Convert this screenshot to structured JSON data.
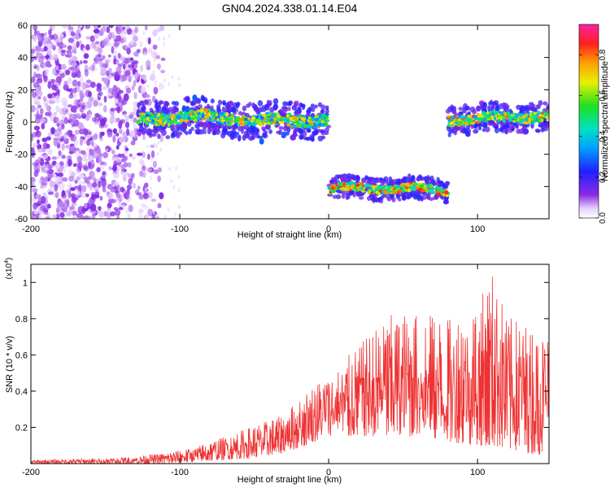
{
  "figure": {
    "title": "GN04.2024.338.01.14.E04"
  },
  "chart_data": [
    {
      "type": "heatmap",
      "title": "GN04.2024.338.01.14.E04",
      "xlabel": "Height of straight line (km)",
      "ylabel": "Frequency (Hz)",
      "xlim": [
        -200,
        148
      ],
      "ylim": [
        -60,
        60
      ],
      "x_ticks": [
        -200,
        -100,
        0,
        100
      ],
      "y_ticks": [
        -60,
        -40,
        -20,
        0,
        20,
        40,
        60
      ],
      "grid": false,
      "colorbar": {
        "label": "Normalized spectral amplitude",
        "range": [
          0,
          0.95
        ],
        "ticks": [
          0.0,
          0.2,
          0.4,
          0.6,
          0.8
        ],
        "colormap": "rainbow (white-purple-blue-cyan-green-yellow-orange-red-magenta)"
      },
      "traces": [
        {
          "x_range": [
            -200,
            -125
          ],
          "freq_range": [
            -60,
            60
          ],
          "typical_amplitude": 0.05,
          "note": "broadband noise"
        },
        {
          "x_range": [
            -128,
            0
          ],
          "center_freq": 2,
          "freq_halfwidth": 6,
          "typical_amplitude": 0.4
        },
        {
          "x_range": [
            0,
            80
          ],
          "center_freq": -42,
          "freq_halfwidth": 4,
          "typical_amplitude": 0.6
        },
        {
          "x_range": [
            80,
            148
          ],
          "center_freq": 3,
          "freq_halfwidth": 5,
          "typical_amplitude": 0.5
        }
      ]
    },
    {
      "type": "line",
      "xlabel": "Height of straight line (km)",
      "ylabel": "SNR (10 * v/v)",
      "y_multiplier": "(x10^4)",
      "xlim": [
        -200,
        148
      ],
      "ylim": [
        0,
        1.1
      ],
      "x_ticks": [
        -200,
        -100,
        0,
        100
      ],
      "y_ticks": [
        0.2,
        0.4,
        0.6,
        0.8,
        1.0
      ],
      "grid": false,
      "series": [
        {
          "color": "#ee3333",
          "envelope": {
            "x": [
              -200,
              -180,
              -150,
              -130,
              -110,
              -90,
              -70,
              -50,
              -30,
              -15,
              0,
              20,
              40,
              60,
              80,
              100,
              110,
              120,
              140,
              148
            ],
            "low": [
              0.0,
              0.0,
              0.0,
              0.0,
              0.0,
              0.01,
              0.02,
              0.03,
              0.06,
              0.1,
              0.15,
              0.15,
              0.15,
              0.15,
              0.12,
              0.1,
              0.1,
              0.08,
              0.05,
              0.05
            ],
            "high": [
              0.02,
              0.025,
              0.03,
              0.04,
              0.06,
              0.09,
              0.15,
              0.21,
              0.27,
              0.4,
              0.5,
              0.65,
              0.82,
              0.85,
              0.8,
              0.88,
              1.06,
              0.82,
              0.75,
              0.8
            ]
          }
        }
      ]
    }
  ]
}
